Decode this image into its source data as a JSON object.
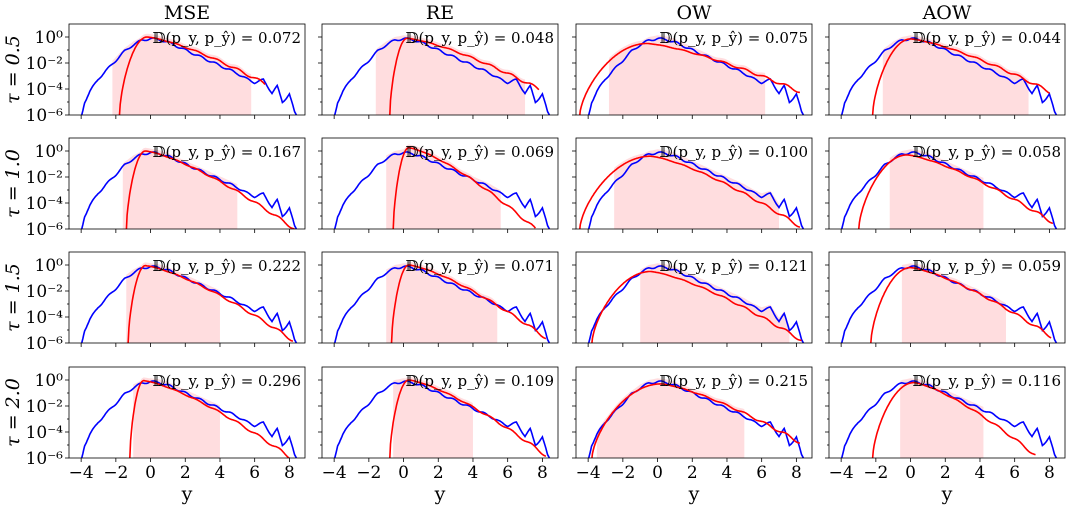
{
  "chart_data": {
    "type": "line",
    "layout": "4x4 small multiples, log y-axis",
    "columns": [
      "MSE",
      "RE",
      "OW",
      "AOW"
    ],
    "rows": [
      "τ = 0.5",
      "τ = 1.0",
      "τ = 1.5",
      "τ = 2.0"
    ],
    "xlabel": "y",
    "xlim": [
      -4.7,
      8.9
    ],
    "ylim": [
      1e-06,
      10
    ],
    "yscale": "log",
    "xticks": [
      -4,
      -2,
      0,
      2,
      4,
      6,
      8
    ],
    "xtick_labels": [
      "−4",
      "−2",
      "0",
      "2",
      "4",
      "6",
      "8"
    ],
    "ytick_labels": [
      "10⁰",
      "10⁻²",
      "10⁻⁴",
      "10⁻⁶"
    ],
    "metric_label": "𝔻(p_y, p_ŷ)",
    "metric_values": [
      [
        "0.072",
        "0.048",
        "0.075",
        "0.044"
      ],
      [
        "0.167",
        "0.069",
        "0.100",
        "0.058"
      ],
      [
        "0.222",
        "0.071",
        "0.121",
        "0.059"
      ],
      [
        "0.296",
        "0.109",
        "0.215",
        "0.116"
      ]
    ],
    "colors": {
      "true": "#0000ff",
      "pred": "#ff0000",
      "band": "#ffb3b8"
    },
    "series_true": {
      "x": [
        -4.0,
        -3.8,
        -3.5,
        -3.0,
        -2.5,
        -2.0,
        -1.5,
        -1.0,
        -0.5,
        0.0,
        0.5,
        1.0,
        2.0,
        3.0,
        4.0,
        5.0,
        5.5,
        6.0,
        6.5,
        7.0,
        7.3,
        7.6,
        8.0,
        8.3,
        8.6
      ],
      "log10": [
        -6.2,
        -5.0,
        -4.2,
        -3.2,
        -2.5,
        -1.8,
        -1.1,
        -0.6,
        -0.25,
        -0.12,
        -0.2,
        -0.4,
        -1.0,
        -1.6,
        -2.2,
        -2.8,
        -3.2,
        -3.5,
        -3.3,
        -4.3,
        -3.8,
        -5.0,
        -4.4,
        -5.8,
        -6.4
      ]
    },
    "panels": [
      [
        {
          "pred_start": -1.8,
          "pred_peak_x": -0.2,
          "pred_peak": 0.0,
          "pred_end": 6.6,
          "pred_end_val": -3.6,
          "band_lo": -2.2,
          "band_hi": 5.8
        },
        {
          "pred_start": -0.8,
          "pred_peak_x": 0.2,
          "pred_peak": -0.1,
          "pred_end": 7.8,
          "pred_end_val": -4.0,
          "band_lo": -1.6,
          "band_hi": 7.0
        },
        {
          "pred_start": -4.5,
          "pred_peak_x": -0.6,
          "pred_peak": -0.5,
          "pred_end": 8.2,
          "pred_end_val": -4.2,
          "band_lo": -2.8,
          "band_hi": 6.2
        },
        {
          "pred_start": -2.2,
          "pred_peak_x": 0.0,
          "pred_peak": -0.15,
          "pred_end": 8.0,
          "pred_end_val": -4.2,
          "band_lo": -1.6,
          "band_hi": 6.8
        }
      ],
      [
        {
          "pred_start": -1.4,
          "pred_peak_x": -0.3,
          "pred_peak": 0.0,
          "pred_end": 8.3,
          "pred_end_val": -6.0,
          "band_lo": -1.6,
          "band_hi": 5.0
        },
        {
          "pred_start": -0.6,
          "pred_peak_x": 0.3,
          "pred_peak": 0.25,
          "pred_end": 7.6,
          "pred_end_val": -6.0,
          "band_lo": -1.0,
          "band_hi": 5.6
        },
        {
          "pred_start": -4.5,
          "pred_peak_x": -0.4,
          "pred_peak": -0.4,
          "pred_end": 8.2,
          "pred_end_val": -5.8,
          "band_lo": -2.5,
          "band_hi": 7.0
        },
        {
          "pred_start": -3.0,
          "pred_peak_x": -0.2,
          "pred_peak": -0.3,
          "pred_end": 8.2,
          "pred_end_val": -5.5,
          "band_lo": -1.2,
          "band_hi": 4.2
        }
      ],
      [
        {
          "pred_start": -1.3,
          "pred_peak_x": -0.3,
          "pred_peak": -0.05,
          "pred_end": 8.2,
          "pred_end_val": -5.8,
          "band_lo": -1.4,
          "band_hi": 4.0
        },
        {
          "pred_start": -0.7,
          "pred_peak_x": 0.3,
          "pred_peak": 0.0,
          "pred_end": 8.2,
          "pred_end_val": -5.6,
          "band_lo": -1.0,
          "band_hi": 5.4
        },
        {
          "pred_start": -3.8,
          "pred_peak_x": -0.4,
          "pred_peak": -0.5,
          "pred_end": 8.3,
          "pred_end_val": -5.8,
          "band_lo": -1.0,
          "band_hi": 7.6
        },
        {
          "pred_start": -2.3,
          "pred_peak_x": 0.0,
          "pred_peak": -0.2,
          "pred_end": 8.1,
          "pred_end_val": -5.5,
          "band_lo": -0.5,
          "band_hi": 5.5
        }
      ],
      [
        {
          "pred_start": -1.2,
          "pred_peak_x": -0.4,
          "pred_peak": -0.05,
          "pred_end": 8.1,
          "pred_end_val": -6.0,
          "band_lo": -1.0,
          "band_hi": 4.0
        },
        {
          "pred_start": -0.8,
          "pred_peak_x": 0.3,
          "pred_peak": 0.0,
          "pred_end": 8.2,
          "pred_end_val": -5.8,
          "band_lo": -0.6,
          "band_hi": 4.0
        },
        {
          "pred_start": -3.8,
          "pred_peak_x": 0.2,
          "pred_peak": -0.3,
          "pred_end": 8.2,
          "pred_end_val": -4.8,
          "band_lo": -3.5,
          "band_hi": 5.0
        },
        {
          "pred_start": -2.2,
          "pred_peak_x": 0.2,
          "pred_peak": -0.2,
          "pred_end": 7.2,
          "pred_end_val": -5.8,
          "band_lo": -0.6,
          "band_hi": 4.2
        }
      ]
    ]
  }
}
